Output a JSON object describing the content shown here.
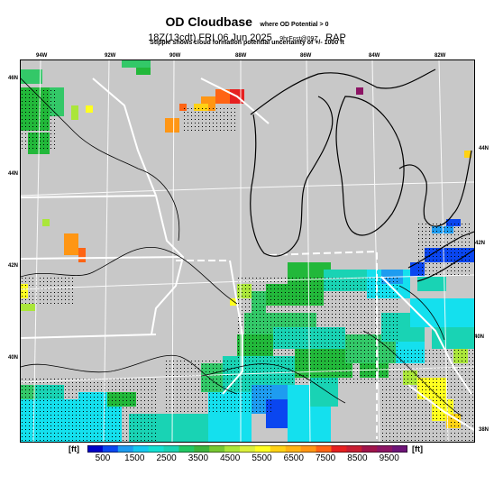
{
  "header": {
    "title": "OD Cloudbase",
    "title_note": "where OD Potential > 0",
    "valid_time": "18Z(13cdt) FRI 06 Jun 2025",
    "forecast_note": "9hrFcst@09Z",
    "model": "RAP",
    "subtitle": "Stipple shows cloud formation potential uncertainty of +/- 1000 ft"
  },
  "map": {
    "top_lon_labels": [
      "94W",
      "92W",
      "90W",
      "88W",
      "86W",
      "84W",
      "82W"
    ],
    "left_lat_labels": [
      "46N",
      "44N",
      "42N",
      "40N"
    ],
    "right_lat_labels": [
      "44N",
      "42N",
      "40N",
      "38N"
    ],
    "colors": {
      "background": "#c8c8c8",
      "state_border": "#ffffff",
      "coast": "#000000",
      "bright_green": "#22b83a",
      "mid_green": "#33c868",
      "teal": "#19d3b4",
      "cyan": "#14e0ee",
      "sky": "#1e9cf0",
      "blue": "#0a46f0",
      "yellow_green": "#aae63a",
      "yellow": "#ffff20",
      "gold": "#ffd214",
      "orange": "#ff9614",
      "orange_red": "#ff6414",
      "red": "#e62020",
      "purple": "#8c1464"
    }
  },
  "colorbar": {
    "unit_left": "[ft]",
    "unit_right": "[ft]",
    "tick_labels": [
      "500",
      "1500",
      "2500",
      "3500",
      "4500",
      "5500",
      "6500",
      "7500",
      "8500",
      "9500"
    ],
    "colors": [
      "#0000c8",
      "#0a46f0",
      "#1e9cf0",
      "#14c8f0",
      "#14e0d2",
      "#19d3b4",
      "#22c864",
      "#3cb43c",
      "#78c832",
      "#aae63a",
      "#dcf03c",
      "#ffff20",
      "#ffd214",
      "#ffb414",
      "#ff9614",
      "#ff6414",
      "#e62020",
      "#c81e32",
      "#a0144b",
      "#8c1464",
      "#6e1478"
    ]
  }
}
